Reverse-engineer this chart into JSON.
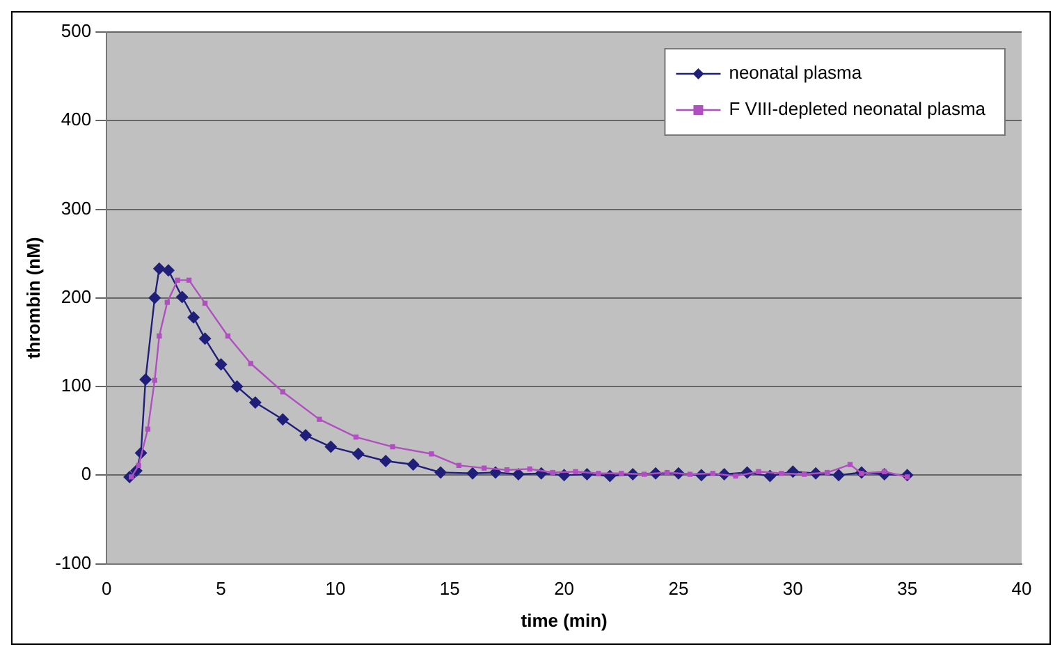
{
  "chart_data": {
    "type": "line",
    "xlabel": "time (min)",
    "ylabel": "thrombin (nM)",
    "xlim": [
      0,
      40
    ],
    "xticks": [
      0,
      5,
      10,
      15,
      20,
      25,
      30,
      35,
      40
    ],
    "ylim": [
      -100,
      500
    ],
    "yticks": [
      -100,
      0,
      100,
      200,
      300,
      400,
      500
    ],
    "grid": "y",
    "legend": "top right",
    "line_style": "solid",
    "series": [
      {
        "name": "neonatal plasma",
        "color": "#1f1f7a",
        "marker": "diamond",
        "x": [
          1.0,
          1.3,
          1.5,
          1.7,
          2.1,
          2.3,
          2.7,
          3.3,
          3.8,
          4.3,
          5.0,
          5.7,
          6.5,
          7.7,
          8.7,
          9.8,
          11,
          12.2,
          13.4,
          14.6,
          16,
          17,
          18,
          19,
          20,
          21,
          22,
          23,
          24,
          25,
          26,
          27,
          28,
          29,
          30,
          31,
          32,
          33,
          34,
          35
        ],
        "values": [
          -2,
          5,
          25,
          108,
          200,
          233,
          231,
          201,
          178,
          154,
          125,
          100,
          82,
          63,
          45,
          32,
          24,
          16,
          12,
          3,
          2,
          3,
          1,
          2,
          0,
          1,
          -1,
          1,
          2,
          2,
          0,
          1,
          3,
          -1,
          4,
          2,
          0,
          3,
          1,
          0
        ]
      },
      {
        "name": "F VIII-depleted neonatal plasma",
        "color": "#b04fc0",
        "marker": "square",
        "x": [
          1.08,
          1.4,
          1.8,
          2.1,
          2.3,
          2.65,
          3.1,
          3.6,
          4.3,
          5.3,
          6.3,
          7.7,
          9.3,
          10.9,
          12.5,
          14.2,
          15.4,
          16.5,
          17.5,
          18.5,
          19.5,
          20.5,
          21.5,
          22.5,
          23.5,
          24.5,
          25.5,
          26.5,
          27.5,
          28.5,
          29.5,
          30.5,
          31.5,
          32.5,
          33,
          34,
          35
        ],
        "values": [
          -2,
          11,
          52,
          107,
          157,
          195,
          220,
          220,
          194,
          157,
          126,
          94,
          63,
          43,
          32,
          24,
          11,
          8,
          6,
          7,
          3,
          4,
          2,
          2,
          1,
          3,
          1,
          2,
          -1,
          4,
          2,
          1,
          3,
          12,
          2,
          4,
          -2
        ]
      }
    ]
  }
}
